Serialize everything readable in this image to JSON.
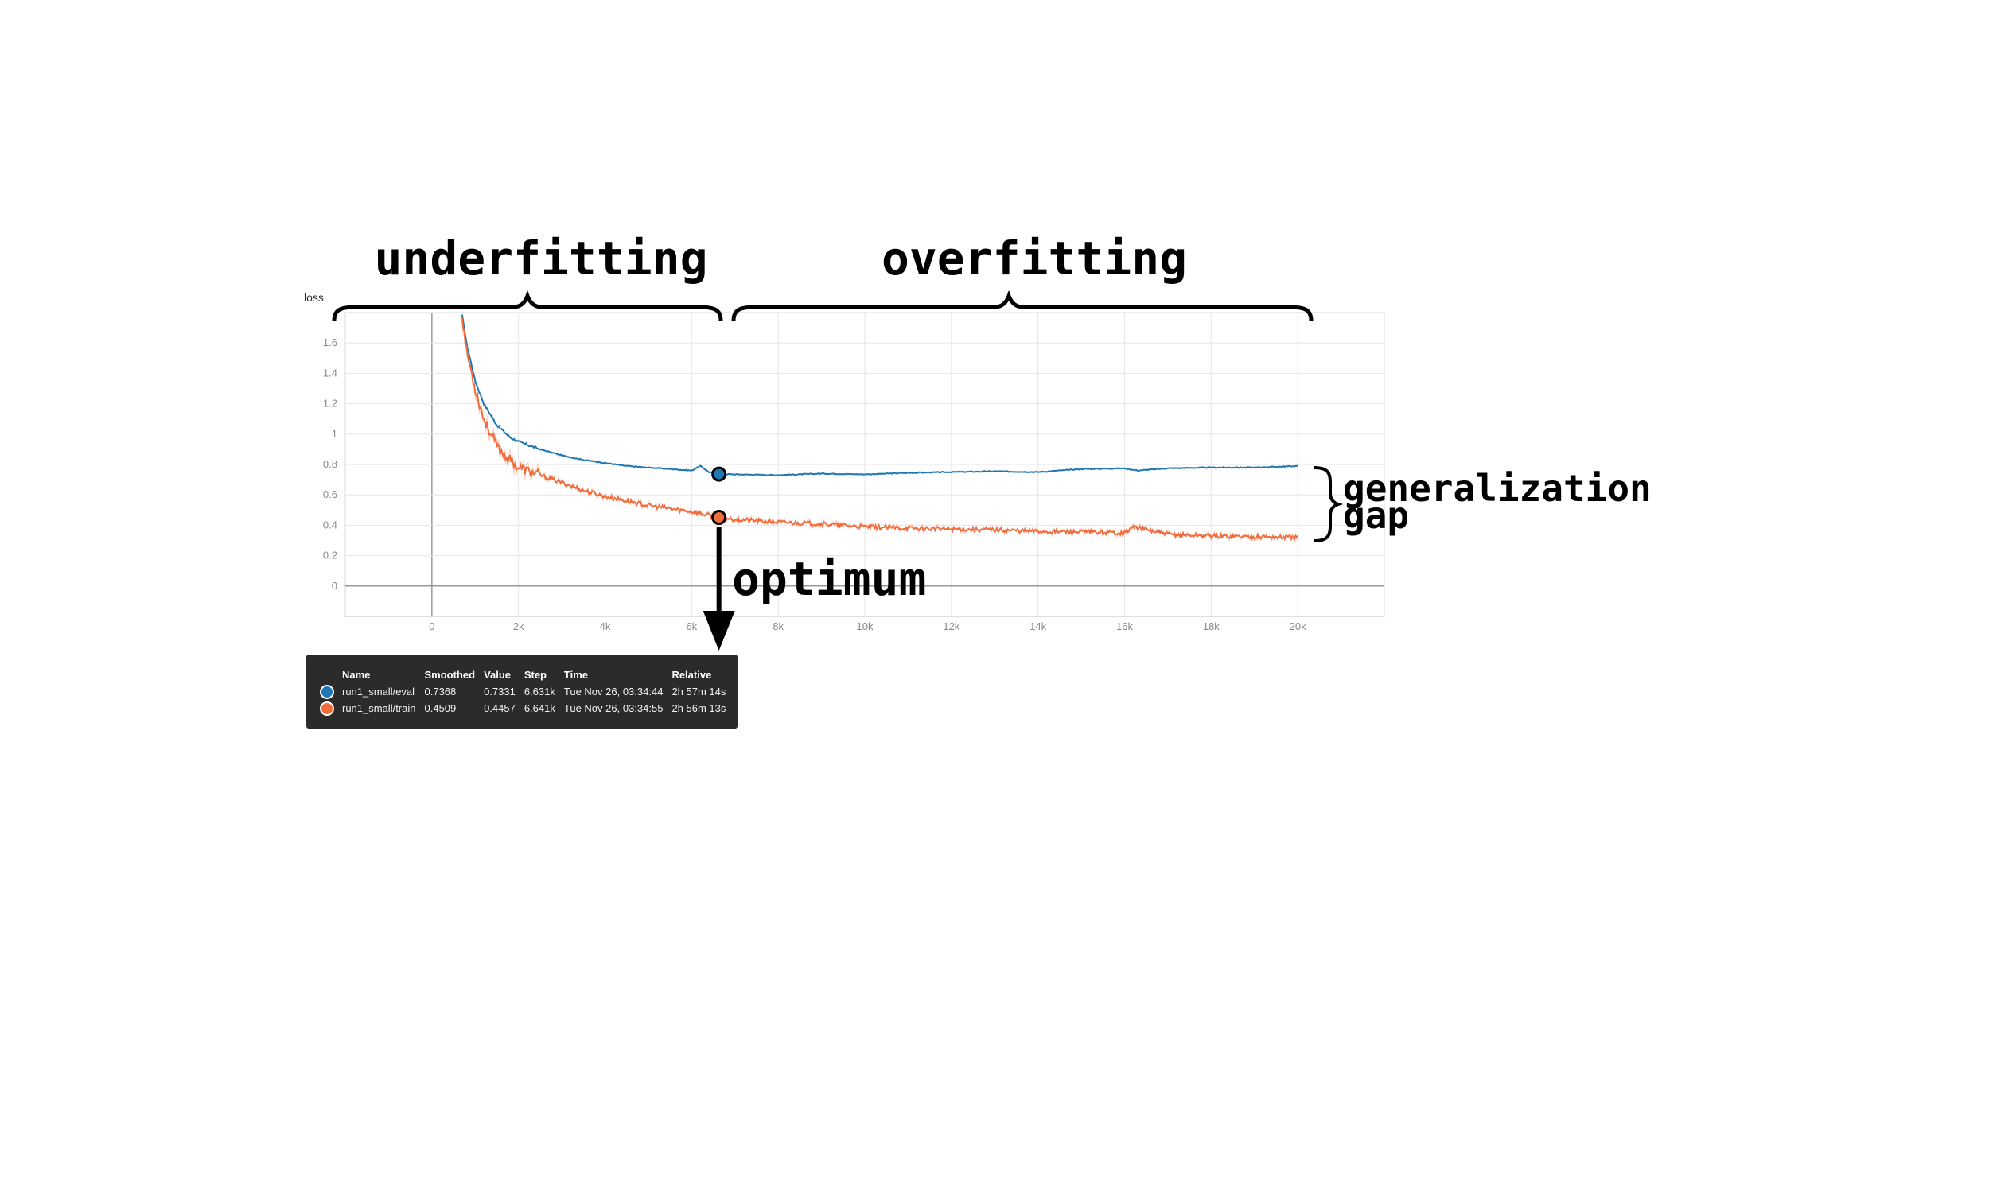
{
  "annotations": {
    "underfitting": "underfitting",
    "overfitting": "overfitting",
    "generalization": "generalization",
    "gap": "gap",
    "optimum": "optimum"
  },
  "colors": {
    "eval": "#1f77b4",
    "train": "#f26b3a",
    "grid": "#e6e6e6",
    "tooltip_bg": "#2b2b2b"
  },
  "chart_data": {
    "type": "line",
    "title": "",
    "ylabel": "loss",
    "xlabel": "",
    "xlim": [
      -2000,
      22000
    ],
    "ylim": [
      -0.2,
      1.8
    ],
    "xticks": [
      0,
      2000,
      4000,
      6000,
      8000,
      10000,
      12000,
      14000,
      16000,
      18000,
      20000
    ],
    "xtick_labels": [
      "0",
      "2k",
      "4k",
      "6k",
      "8k",
      "10k",
      "12k",
      "14k",
      "16k",
      "18k",
      "20k"
    ],
    "yticks": [
      0,
      0.2,
      0.4,
      0.6,
      0.8,
      1,
      1.2,
      1.4,
      1.6
    ],
    "ytick_labels": [
      "0",
      "0.2",
      "0.4",
      "0.6",
      "0.8",
      "1",
      "1.2",
      "1.4",
      "1.6"
    ],
    "grid": true,
    "series": [
      {
        "name": "run1_small/eval",
        "color": "#1f77b4",
        "x": [
          700,
          800,
          1000,
          1200,
          1500,
          1800,
          2000,
          2500,
          3000,
          3500,
          4000,
          4500,
          5000,
          5500,
          6000,
          6200,
          6400,
          6631,
          7000,
          8000,
          9000,
          10000,
          11000,
          12000,
          13000,
          14000,
          15000,
          16000,
          16300,
          17000,
          18000,
          19000,
          20000
        ],
        "y": [
          1.78,
          1.6,
          1.35,
          1.2,
          1.06,
          0.98,
          0.95,
          0.9,
          0.86,
          0.83,
          0.81,
          0.79,
          0.78,
          0.77,
          0.76,
          0.79,
          0.75,
          0.7368,
          0.735,
          0.73,
          0.74,
          0.735,
          0.745,
          0.75,
          0.755,
          0.75,
          0.77,
          0.775,
          0.76,
          0.775,
          0.78,
          0.78,
          0.79
        ]
      },
      {
        "name": "run1_small/train",
        "color": "#f26b3a",
        "x": [
          700,
          800,
          1000,
          1200,
          1500,
          1800,
          2000,
          2500,
          3000,
          3500,
          4000,
          4500,
          5000,
          5500,
          6000,
          6641,
          7000,
          8000,
          9000,
          10000,
          11000,
          12000,
          13000,
          14000,
          15000,
          16000,
          16200,
          17000,
          18000,
          19000,
          20000
        ],
        "y": [
          1.78,
          1.55,
          1.3,
          1.1,
          0.92,
          0.83,
          0.78,
          0.73,
          0.68,
          0.63,
          0.59,
          0.56,
          0.53,
          0.51,
          0.49,
          0.4509,
          0.44,
          0.42,
          0.41,
          0.39,
          0.38,
          0.375,
          0.37,
          0.36,
          0.355,
          0.35,
          0.39,
          0.34,
          0.33,
          0.325,
          0.32
        ]
      }
    ],
    "optimum_step": 6631
  },
  "tooltip": {
    "headers": [
      "Name",
      "Smoothed",
      "Value",
      "Step",
      "Time",
      "Relative"
    ],
    "rows": [
      {
        "name": "run1_small/eval",
        "smoothed": "0.7368",
        "value": "0.7331",
        "step": "6.631k",
        "time": "Tue Nov 26, 03:34:44",
        "relative": "2h 57m 14s"
      },
      {
        "name": "run1_small/train",
        "smoothed": "0.4509",
        "value": "0.4457",
        "step": "6.641k",
        "time": "Tue Nov 26, 03:34:55",
        "relative": "2h 56m 13s"
      }
    ]
  }
}
